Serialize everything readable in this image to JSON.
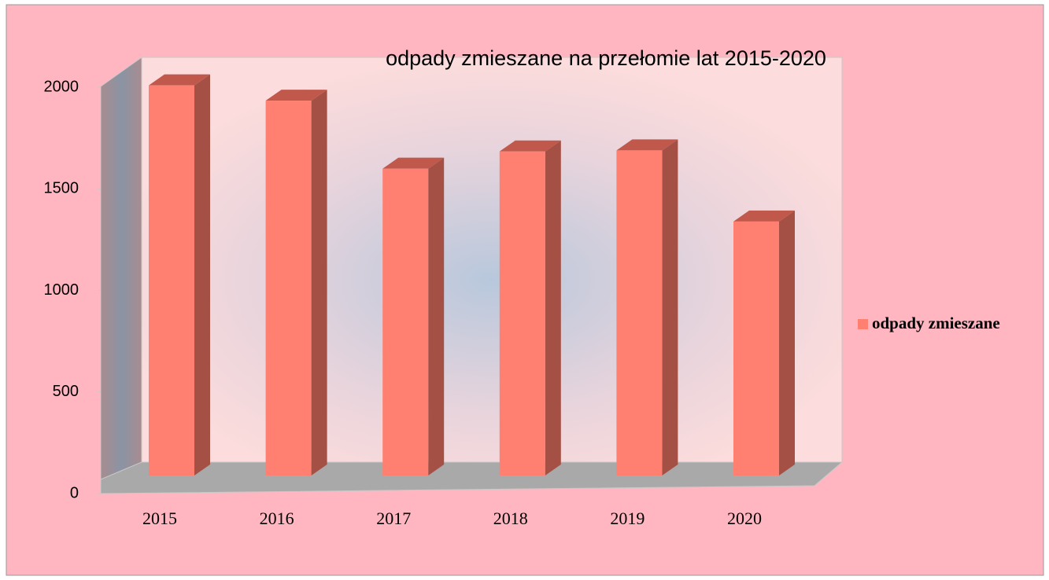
{
  "chart_data": {
    "type": "bar",
    "title": "odpady zmieszane na przełomie lat 2015-2020",
    "categories": [
      "2015",
      "2016",
      "2017",
      "2018",
      "2019",
      "2020"
    ],
    "series": [
      {
        "name": "odpady zmieszane",
        "color": "#ff8070",
        "values": [
          1920,
          1845,
          1510,
          1595,
          1600,
          1250
        ]
      }
    ],
    "ylim": [
      0,
      2000
    ],
    "yticks": [
      0,
      500,
      1000,
      1500,
      2000
    ],
    "legend": "right"
  }
}
